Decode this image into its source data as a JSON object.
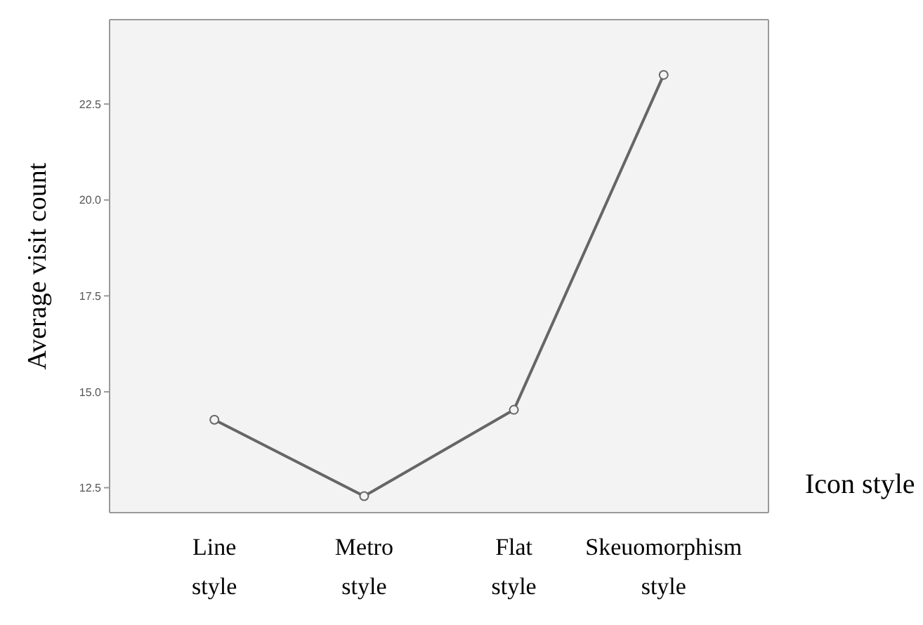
{
  "chart_data": {
    "type": "line",
    "xlabel": "Icon style",
    "ylabel": "Average visit count",
    "categories": [
      "Line style",
      "Metro style",
      "Flat style",
      "Skeuomorphism style"
    ],
    "values": [
      14.27,
      12.28,
      14.53,
      23.26
    ],
    "color": "#666666",
    "marker": "circle",
    "ylim": [
      11.85,
      24.7
    ],
    "yticks": [
      {
        "value": 12.5,
        "label": "12.5"
      },
      {
        "value": 15,
        "label": "15.0"
      },
      {
        "value": 17.5,
        "label": "17.5"
      },
      {
        "value": 20,
        "label": "20.0"
      },
      {
        "value": 22.5,
        "label": "22.5"
      }
    ]
  }
}
